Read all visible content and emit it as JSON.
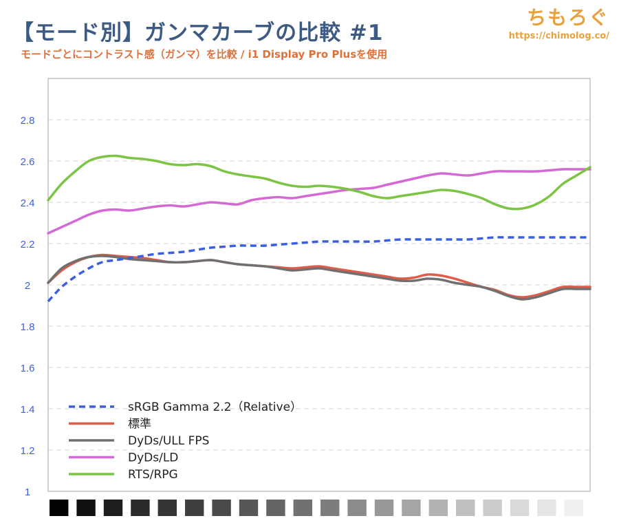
{
  "page": {
    "title": "【モード別】ガンマカーブの比較 #1",
    "subtitle": "モードごとにコントラスト感（ガンマ）を比較 / i1 Display Pro Plusを使用",
    "logo": {
      "name": "ちもろぐ",
      "url": "https://chimolog.co/"
    }
  },
  "chart_data": {
    "type": "line",
    "title": "【モード別】ガンマカーブの比較 #1",
    "subtitle": "モードごとにコントラスト感（ガンマ）を比較 / i1 Display Pro Plusを使用",
    "xlabel": "",
    "ylabel": "",
    "ylim": [
      1,
      3
    ],
    "yticks": [
      1,
      1.2,
      1.4,
      1.6,
      1.8,
      2,
      2.2,
      2.4,
      2.6,
      2.8
    ],
    "ytick_labels": [
      "1",
      "1.2",
      "1.4",
      "1.6",
      "1.8",
      "2",
      "2.2",
      "2.4",
      "2.6",
      "2.8"
    ],
    "grid": true,
    "legend_position": "bottom-left",
    "x_axis": "grayscale swatches from black to white (20 steps)",
    "swatch_grays": [
      3,
      17,
      30,
      42,
      53,
      63,
      74,
      87,
      100,
      113,
      125,
      139,
      152,
      165,
      178,
      191,
      204,
      217,
      229,
      240
    ],
    "x": [
      0,
      0.5,
      1,
      1.5,
      2,
      2.5,
      3,
      3.5,
      4,
      4.5,
      5,
      5.5,
      6,
      6.5,
      7,
      7.5,
      8,
      8.5,
      9,
      9.5,
      10,
      10.5,
      11,
      11.5,
      12,
      12.5,
      13,
      13.5,
      14,
      14.5,
      15,
      15.5,
      16,
      16.5,
      17,
      17.5,
      18,
      18.5,
      19,
      19.5,
      20
    ],
    "series": [
      {
        "name": "sRGB Gamma 2.2（Relative）",
        "color": "#3b5fe0",
        "dashed": true,
        "values": [
          1.92,
          1.99,
          2.04,
          2.08,
          2.11,
          2.12,
          2.13,
          2.14,
          2.15,
          2.155,
          2.16,
          2.17,
          2.18,
          2.185,
          2.19,
          2.19,
          2.19,
          2.195,
          2.2,
          2.205,
          2.21,
          2.21,
          2.21,
          2.21,
          2.21,
          2.215,
          2.22,
          2.22,
          2.22,
          2.22,
          2.22,
          2.22,
          2.225,
          2.23,
          2.23,
          2.23,
          2.23,
          2.23,
          2.23,
          2.23,
          2.23
        ]
      },
      {
        "name": "標準",
        "color": "#e05c4a",
        "dashed": false,
        "values": [
          2.01,
          2.07,
          2.11,
          2.135,
          2.145,
          2.14,
          2.135,
          2.13,
          2.12,
          2.11,
          2.11,
          2.115,
          2.12,
          2.11,
          2.1,
          2.095,
          2.09,
          2.085,
          2.08,
          2.085,
          2.09,
          2.08,
          2.07,
          2.06,
          2.05,
          2.04,
          2.03,
          2.035,
          2.05,
          2.045,
          2.03,
          2.01,
          1.99,
          1.975,
          1.95,
          1.94,
          1.95,
          1.97,
          1.99,
          1.99,
          1.99
        ]
      },
      {
        "name": "DyDs/ULL FPS",
        "color": "#707070",
        "dashed": false,
        "values": [
          2.01,
          2.08,
          2.115,
          2.135,
          2.14,
          2.135,
          2.125,
          2.12,
          2.115,
          2.11,
          2.11,
          2.115,
          2.12,
          2.11,
          2.1,
          2.095,
          2.09,
          2.08,
          2.07,
          2.075,
          2.08,
          2.07,
          2.06,
          2.05,
          2.04,
          2.03,
          2.02,
          2.02,
          2.03,
          2.025,
          2.01,
          2.0,
          1.99,
          1.97,
          1.945,
          1.93,
          1.94,
          1.96,
          1.98,
          1.98,
          1.98
        ]
      },
      {
        "name": "DyDs/LD",
        "color": "#d468d4",
        "dashed": false,
        "values": [
          2.25,
          2.28,
          2.31,
          2.34,
          2.36,
          2.365,
          2.36,
          2.37,
          2.38,
          2.385,
          2.38,
          2.39,
          2.4,
          2.395,
          2.39,
          2.41,
          2.42,
          2.425,
          2.42,
          2.43,
          2.44,
          2.45,
          2.46,
          2.465,
          2.47,
          2.485,
          2.5,
          2.515,
          2.53,
          2.54,
          2.535,
          2.53,
          2.54,
          2.55,
          2.55,
          2.55,
          2.55,
          2.555,
          2.56,
          2.56,
          2.56
        ]
      },
      {
        "name": "RTS/RPG",
        "color": "#7cc444",
        "dashed": false,
        "values": [
          2.41,
          2.49,
          2.55,
          2.6,
          2.62,
          2.625,
          2.615,
          2.61,
          2.6,
          2.585,
          2.58,
          2.585,
          2.575,
          2.55,
          2.535,
          2.525,
          2.515,
          2.495,
          2.48,
          2.475,
          2.48,
          2.475,
          2.465,
          2.45,
          2.43,
          2.42,
          2.43,
          2.44,
          2.45,
          2.46,
          2.455,
          2.44,
          2.42,
          2.39,
          2.37,
          2.37,
          2.39,
          2.43,
          2.49,
          2.53,
          2.57
        ]
      }
    ]
  }
}
